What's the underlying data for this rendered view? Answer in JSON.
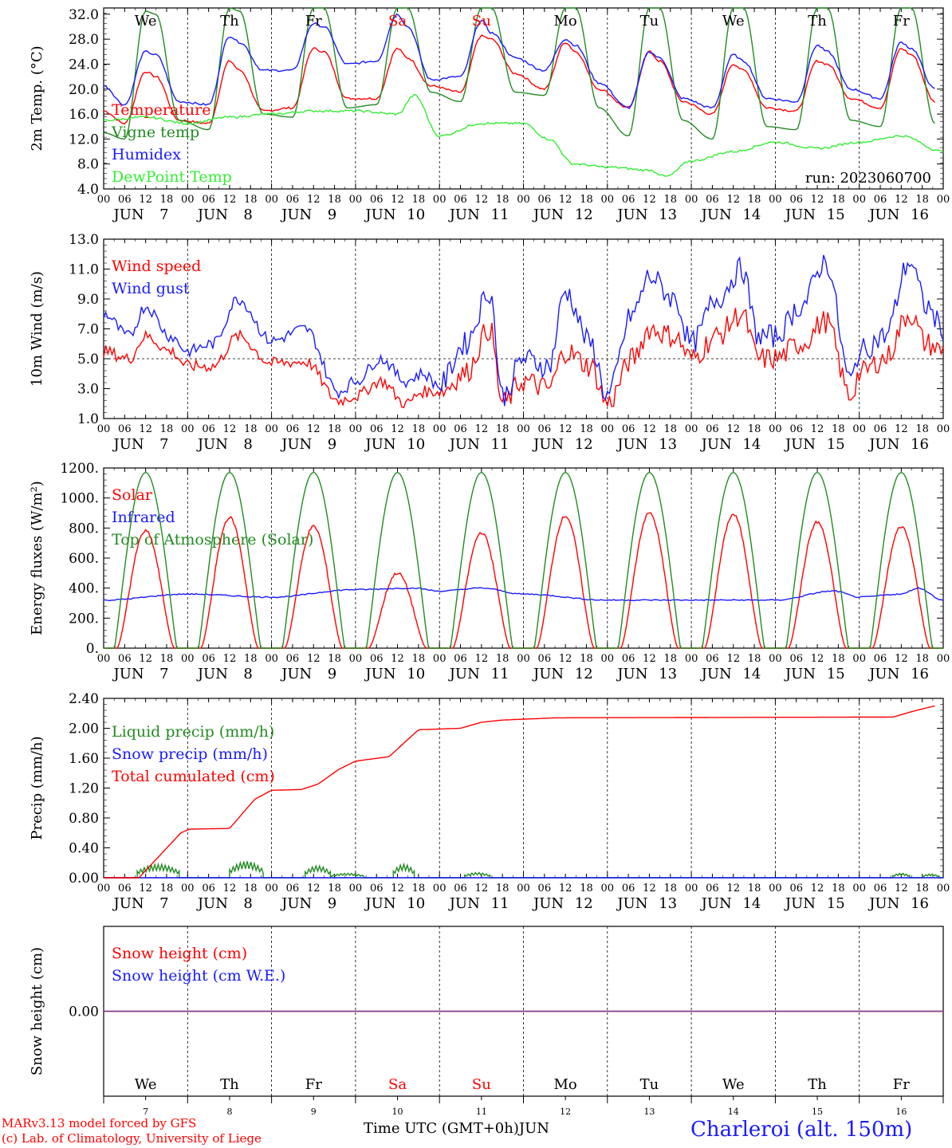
{
  "colors": {
    "red": "#ff0000",
    "blue": "#1a1aff",
    "green": "#228b22",
    "lightgreen": "#33ee33",
    "purple": "#7a3f9a",
    "black": "#000000"
  },
  "day_abbrevs": [
    "We",
    "Th",
    "Fr",
    "Sa",
    "Su",
    "Mo",
    "Tu",
    "We",
    "Th",
    "Fr"
  ],
  "weekend_days": [
    "Sa",
    "Su"
  ],
  "hour_labels": [
    "00",
    "06",
    "12",
    "18"
  ],
  "month": "JUN",
  "dates": [
    "7",
    "8",
    "9",
    "10",
    "11",
    "12",
    "13",
    "14",
    "15",
    "16"
  ],
  "chart_data": [
    {
      "type": "line",
      "ylabel": "2m Temp. (°C)",
      "ylim": [
        4,
        33
      ],
      "yticks": [
        "4.0",
        "8.0",
        "12.0",
        "16.0",
        "20.0",
        "24.0",
        "28.0",
        "32.0"
      ],
      "annotation": "run: 2023060700",
      "series": [
        {
          "name": "Temperature",
          "color": "#ff0000",
          "x": [
            0,
            0.25,
            0.5,
            0.62,
            0.9,
            1.25,
            1.5,
            1.62,
            1.9,
            2.25,
            2.5,
            2.62,
            2.9,
            3.25,
            3.5,
            3.62,
            3.9,
            4.25,
            4.5,
            4.62,
            4.9,
            5.25,
            5.5,
            5.62,
            5.9,
            6.25,
            6.5,
            6.62,
            6.9,
            7.25,
            7.5,
            7.62,
            7.9,
            8.25,
            8.5,
            8.62,
            8.9,
            9.25,
            9.5,
            9.62,
            9.9
          ],
          "y": [
            16.5,
            14.5,
            22.8,
            22.0,
            15.0,
            14.5,
            24.5,
            23.0,
            16.5,
            17.0,
            26.5,
            26.0,
            18.5,
            18.5,
            26.5,
            25.0,
            20.5,
            19.5,
            28.5,
            28.0,
            22.5,
            20.0,
            27.5,
            26.0,
            20.0,
            17.0,
            26.0,
            24.5,
            18.0,
            16.0,
            24.0,
            23.0,
            17.0,
            16.5,
            24.5,
            24.0,
            18.5,
            17.0,
            26.5,
            25.5,
            18.0
          ]
        },
        {
          "name": "Vigne temp",
          "color": "#228b22",
          "x": [
            0,
            0.25,
            0.5,
            0.62,
            0.9,
            1.25,
            1.5,
            1.62,
            1.9,
            2.25,
            2.5,
            2.62,
            2.9,
            3.25,
            3.5,
            3.62,
            3.9,
            4.25,
            4.5,
            4.62,
            4.9,
            5.25,
            5.5,
            5.62,
            5.9,
            6.25,
            6.5,
            6.62,
            6.9,
            7.25,
            7.5,
            7.62,
            7.9,
            8.25,
            8.5,
            8.62,
            8.9,
            9.25,
            9.5,
            9.62,
            9.9
          ],
          "y": [
            13.0,
            12.0,
            32.5,
            32.0,
            15.0,
            13.5,
            33.0,
            32.5,
            16.0,
            15.5,
            33.0,
            33.0,
            17.0,
            17.5,
            33.0,
            33.0,
            19.5,
            18.0,
            33.0,
            33.0,
            19.5,
            19.0,
            33.0,
            33.0,
            17.0,
            12.5,
            33.0,
            33.0,
            15.0,
            12.0,
            33.0,
            33.0,
            14.0,
            13.5,
            33.0,
            33.0,
            15.0,
            14.0,
            33.0,
            33.0,
            14.5
          ]
        },
        {
          "name": "Humidex",
          "color": "#1a1aff",
          "x": [
            0,
            0.25,
            0.5,
            0.62,
            0.9,
            1.25,
            1.5,
            1.62,
            1.9,
            2.25,
            2.5,
            2.62,
            2.9,
            3.25,
            3.5,
            3.62,
            3.9,
            4.25,
            4.5,
            4.62,
            4.9,
            5.25,
            5.5,
            5.62,
            5.9,
            6.25,
            6.5,
            6.62,
            6.9,
            7.25,
            7.5,
            7.62,
            7.9,
            8.25,
            8.5,
            8.62,
            8.9,
            9.25,
            9.5,
            9.62,
            9.9
          ],
          "y": [
            20.5,
            17.5,
            26.0,
            25.5,
            18.0,
            17.5,
            28.5,
            27.5,
            23.0,
            23.0,
            30.5,
            30.0,
            24.0,
            24.5,
            32.0,
            30.0,
            21.5,
            22.0,
            31.0,
            29.0,
            25.0,
            23.0,
            28.0,
            27.0,
            21.0,
            17.0,
            26.0,
            25.0,
            18.5,
            17.0,
            25.5,
            24.5,
            18.5,
            18.0,
            27.0,
            26.0,
            20.0,
            18.5,
            27.5,
            26.5,
            20.0
          ]
        },
        {
          "name": "DewPoint Temp",
          "color": "#33ee33",
          "x": [
            0,
            0.5,
            1,
            1.5,
            2,
            2.5,
            3,
            3.5,
            3.7,
            4,
            4.5,
            5,
            5.3,
            5.6,
            6,
            6.5,
            6.7,
            7,
            7.5,
            8,
            8.5,
            9,
            9.5,
            10
          ],
          "y": [
            15.0,
            15.5,
            14.5,
            15.5,
            16.0,
            16.5,
            16.5,
            16.0,
            19.0,
            12.5,
            14.5,
            14.5,
            12.0,
            8.0,
            7.5,
            7.0,
            6.0,
            8.5,
            10.0,
            11.5,
            10.5,
            11.5,
            12.5,
            10.0
          ]
        }
      ]
    },
    {
      "type": "line",
      "ylabel": "10m Wind (m/s)",
      "ylim": [
        1,
        13
      ],
      "yticks": [
        "1.0",
        "3.0",
        "5.0",
        "7.0",
        "9.0",
        "11.0",
        "13.0"
      ],
      "reference_line": 5,
      "series": [
        {
          "name": "Wind speed",
          "color": "#ff0000",
          "x": [
            0,
            0.3,
            0.5,
            0.8,
            1,
            1.3,
            1.6,
            2,
            2.4,
            2.8,
            3,
            3.3,
            3.6,
            3.8,
            4,
            4.3,
            4.6,
            4.75,
            5,
            5.3,
            5.5,
            5.8,
            6,
            6.3,
            6.5,
            6.8,
            7,
            7.3,
            7.6,
            7.8,
            8,
            8.3,
            8.6,
            8.9,
            9,
            9.3,
            9.6,
            9.8,
            10
          ],
          "y": [
            5.5,
            5.0,
            6.5,
            5.5,
            4.5,
            4.5,
            6.5,
            4.7,
            4.8,
            2.2,
            2.5,
            3.5,
            2.0,
            2.8,
            2.8,
            4.0,
            7.0,
            2.0,
            3.5,
            3.0,
            5.5,
            4.5,
            2.0,
            5.0,
            7.0,
            6.5,
            5.0,
            6.5,
            8.0,
            5.0,
            5.0,
            6.0,
            7.5,
            2.5,
            4.0,
            5.0,
            8.0,
            6.0,
            5.5
          ]
        },
        {
          "name": "Wind gust",
          "color": "#1a1aff",
          "x": [
            0,
            0.3,
            0.5,
            0.8,
            1,
            1.3,
            1.6,
            2,
            2.4,
            2.8,
            3,
            3.3,
            3.6,
            3.8,
            4,
            4.3,
            4.6,
            4.75,
            5,
            5.3,
            5.5,
            5.8,
            6,
            6.3,
            6.5,
            6.8,
            7,
            7.3,
            7.6,
            7.8,
            8,
            8.3,
            8.6,
            8.9,
            9,
            9.3,
            9.6,
            9.8,
            10
          ],
          "y": [
            8.0,
            6.5,
            8.5,
            6.5,
            5.5,
            6.0,
            9.0,
            6.2,
            7.0,
            2.8,
            3.5,
            5.0,
            3.5,
            4.0,
            3.2,
            6.0,
            9.5,
            2.5,
            5.0,
            4.5,
            9.5,
            6.0,
            2.5,
            8.0,
            10.5,
            9.0,
            6.0,
            9.0,
            11.0,
            6.5,
            6.5,
            8.5,
            11.5,
            3.5,
            5.5,
            6.5,
            11.5,
            8.5,
            7.0
          ]
        }
      ]
    },
    {
      "type": "line",
      "ylabel": "Energy fluxes (W/m²)",
      "ylim": [
        0,
        1200
      ],
      "yticks": [
        "0.",
        "200.",
        "400.",
        "600.",
        "800.",
        "1000.",
        "1200."
      ],
      "series": [
        {
          "name": "Solar",
          "color": "#ff0000",
          "peaks": [
            780,
            870,
            810,
            500,
            770,
            880,
            900,
            890,
            840,
            810
          ]
        },
        {
          "name": "Infrared",
          "color": "#1a1aff",
          "x": [
            0,
            1,
            2,
            3,
            3.7,
            4,
            4.5,
            5,
            6,
            7,
            8,
            8.7,
            9,
            9.5,
            9.7,
            10
          ],
          "y": [
            320,
            360,
            340,
            390,
            400,
            380,
            400,
            360,
            320,
            320,
            320,
            380,
            340,
            360,
            400,
            320
          ]
        },
        {
          "name": "Top of Atmosphere (Solar)",
          "color": "#228b22",
          "peaks": [
            1170,
            1170,
            1170,
            1170,
            1170,
            1170,
            1170,
            1170,
            1170,
            1170
          ]
        }
      ]
    },
    {
      "type": "line",
      "ylabel": "Precip (mm/h)",
      "ylim": [
        0,
        2.4
      ],
      "yticks": [
        "0.00",
        "0.40",
        "0.80",
        "1.20",
        "1.60",
        "2.00",
        "2.40"
      ],
      "series": [
        {
          "name": "Liquid precip (mm/h)",
          "color": "#228b22",
          "bursts": [
            {
              "x0": 0.4,
              "x1": 0.9,
              "h": 0.18
            },
            {
              "x0": 1.5,
              "x1": 1.9,
              "h": 0.22
            },
            {
              "x0": 2.4,
              "x1": 2.7,
              "h": 0.16
            },
            {
              "x0": 2.7,
              "x1": 3.1,
              "h": 0.06
            },
            {
              "x0": 3.45,
              "x1": 3.7,
              "h": 0.18
            },
            {
              "x0": 4.3,
              "x1": 4.6,
              "h": 0.07
            },
            {
              "x0": 9.4,
              "x1": 9.6,
              "h": 0.06
            },
            {
              "x0": 9.75,
              "x1": 9.95,
              "h": 0.05
            }
          ]
        },
        {
          "name": "Snow precip (mm/h)",
          "color": "#1a1aff",
          "x": [
            0,
            10
          ],
          "y": [
            0,
            0
          ]
        },
        {
          "name": "Total cumulated (cm)",
          "color": "#ff0000",
          "x": [
            0,
            0.42,
            0.92,
            1.02,
            1.5,
            1.8,
            2,
            2.35,
            2.55,
            2.8,
            3,
            3.4,
            3.75,
            4.25,
            4.5,
            4.75,
            5.4,
            9.4,
            9.65,
            9.9
          ],
          "y": [
            0,
            0,
            0.6,
            0.65,
            0.66,
            1.05,
            1.17,
            1.18,
            1.25,
            1.45,
            1.56,
            1.62,
            1.98,
            2.0,
            2.08,
            2.11,
            2.14,
            2.15,
            2.23,
            2.3
          ]
        }
      ]
    },
    {
      "type": "line",
      "ylabel": "Snow height (cm)",
      "ylim": [
        -1,
        1
      ],
      "yticks": [
        "0.00"
      ],
      "series": [
        {
          "name": "Snow height (cm)",
          "color": "#ff0000",
          "x": [
            0,
            10
          ],
          "y": [
            0,
            0
          ]
        },
        {
          "name": "Snow height (cm W.E.)",
          "color": "#1a1aff",
          "x": [
            0,
            10
          ],
          "y": [
            0,
            0
          ]
        }
      ]
    }
  ],
  "xaxis_label": "Time UTC (GMT+0h)",
  "xaxis_month": "JUN",
  "footer": {
    "model_line": "MARv3.13 model forced by GFS",
    "copyright_line": "(c) Lab. of Climatology, University of Liege",
    "station": "Charleroi (alt. 150m)"
  }
}
